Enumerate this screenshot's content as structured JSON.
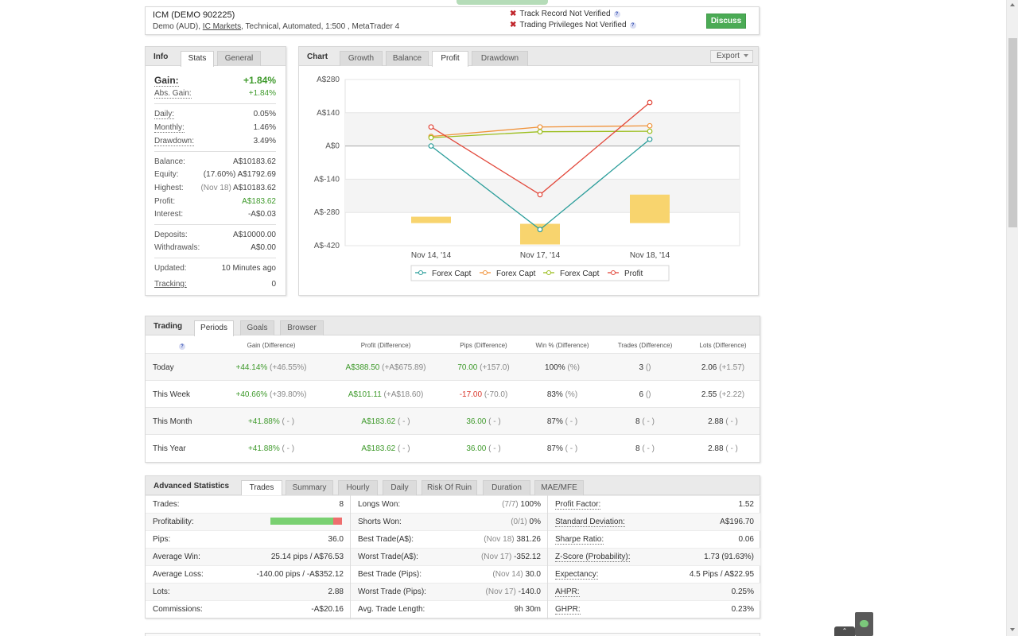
{
  "header": {
    "account_title": "ICM (DEMO 902225)",
    "subtitle_prefix": "Demo (AUD), ",
    "broker_link": "IC Markets",
    "subtitle_suffix": ", Technical, Automated, 1:500 , MetaTrader 4",
    "warning_1": "Track Record Not Verified",
    "warning_2": "Trading Privileges Not Verified",
    "discuss_label": "Discuss",
    "help_glyph": "?",
    "cross_glyph": "✖"
  },
  "info": {
    "title": "Info",
    "tabs": [
      "Stats",
      "General"
    ],
    "gain_label": "Gain:",
    "gain_value": "+1.84%",
    "abs_gain_label": "Abs. Gain:",
    "abs_gain_value": "+1.84%",
    "daily_label": "Daily:",
    "daily_value": "0.05%",
    "monthly_label": "Monthly:",
    "monthly_value": "1.46%",
    "drawdown_label": "Drawdown:",
    "drawdown_value": "3.49%",
    "balance_label": "Balance:",
    "balance_value": "A$10183.62",
    "equity_label": "Equity:",
    "equity_note": "(17.60%)",
    "equity_value": "A$1792.69",
    "highest_label": "Highest:",
    "highest_note": "(Nov 18)",
    "highest_value": "A$10183.62",
    "profit_label": "Profit:",
    "profit_value": "A$183.62",
    "interest_label": "Interest:",
    "interest_value": "-A$0.03",
    "deposits_label": "Deposits:",
    "deposits_value": "A$10000.00",
    "withdrawals_label": "Withdrawals:",
    "withdrawals_value": "A$0.00",
    "updated_label": "Updated:",
    "updated_value": "10 Minutes ago",
    "tracking_label": "Tracking:",
    "tracking_value": "0"
  },
  "chart_panel": {
    "title": "Chart",
    "tabs": [
      "Growth",
      "Balance",
      "Profit",
      "Drawdown"
    ],
    "active_tab": "Profit",
    "export_label": "Export"
  },
  "chart_data": {
    "type": "line",
    "categories": [
      "Nov 14, '14",
      "Nov 17, '14",
      "Nov 18, '14"
    ],
    "y_ticks": [
      "A$280",
      "A$140",
      "A$0",
      "A$-140",
      "A$-280",
      "A$-420"
    ],
    "ylim": [
      -420,
      280
    ],
    "grid": true,
    "legend_position": "bottom",
    "series": [
      {
        "name": "Forex Capt",
        "color": "#2a9d9a",
        "values": [
          0,
          -352,
          28
        ]
      },
      {
        "name": "Forex Capt",
        "color": "#f0933b",
        "values": [
          40,
          80,
          85
        ]
      },
      {
        "name": "Forex Capt",
        "color": "#9cbe1e",
        "values": [
          35,
          60,
          62
        ]
      },
      {
        "name": "Profit",
        "color": "#e2483b",
        "values": [
          80,
          -205,
          183
        ]
      }
    ],
    "bars": {
      "color": "#f8d46e",
      "values": [
        {
          "x": 0,
          "low": -325,
          "high": -298
        },
        {
          "x": 1,
          "low": -415,
          "high": -328
        },
        {
          "x": 2,
          "low": -325,
          "high": -205
        }
      ]
    }
  },
  "trading": {
    "title": "Trading",
    "tabs": [
      "Periods",
      "Goals",
      "Browser"
    ],
    "columns": [
      "Gain (Difference)",
      "Profit (Difference)",
      "Pips (Difference)",
      "Win % (Difference)",
      "Trades (Difference)",
      "Lots (Difference)"
    ],
    "rows": [
      {
        "label": "Today",
        "gain": "+44.14%",
        "gain_d": "(+46.55%)",
        "profit": "A$388.50",
        "profit_d": "(+A$675.89)",
        "pips": "70.00",
        "pips_d": "(+157.0)",
        "win": "100%",
        "win_d": "(%)",
        "trades": "3",
        "trades_d": "()",
        "lots": "2.06",
        "lots_d": "(+1.57)"
      },
      {
        "label": "This Week",
        "gain": "+40.66%",
        "gain_d": "(+39.80%)",
        "profit": "A$101.11",
        "profit_d": "(+A$18.60)",
        "pips": "-17.00",
        "pips_d": "(-70.0)",
        "win": "83%",
        "win_d": "(%)",
        "trades": "6",
        "trades_d": "()",
        "lots": "2.55",
        "lots_d": "(+2.22)"
      },
      {
        "label": "This Month",
        "gain": "+41.88%",
        "gain_d": "( - )",
        "profit": "A$183.62",
        "profit_d": "( - )",
        "pips": "36.00",
        "pips_d": "( - )",
        "win": "87%",
        "win_d": "( - )",
        "trades": "8",
        "trades_d": "( - )",
        "lots": "2.88",
        "lots_d": "( - )"
      },
      {
        "label": "This Year",
        "gain": "+41.88%",
        "gain_d": "( - )",
        "profit": "A$183.62",
        "profit_d": "( - )",
        "pips": "36.00",
        "pips_d": "( - )",
        "win": "87%",
        "win_d": "( - )",
        "trades": "8",
        "trades_d": "( - )",
        "lots": "2.88",
        "lots_d": "( - )"
      }
    ]
  },
  "advanced": {
    "title": "Advanced Statistics",
    "tabs": [
      "Trades",
      "Summary",
      "Hourly",
      "Daily",
      "Risk Of Ruin",
      "Duration",
      "MAE/MFE"
    ],
    "col1": [
      {
        "k": "Trades:",
        "v": "8"
      },
      {
        "k": "Profitability:",
        "v": ""
      },
      {
        "k": "Pips:",
        "v": "36.0"
      },
      {
        "k": "Average Win:",
        "v": "25.14 pips / A$76.53"
      },
      {
        "k": "Average Loss:",
        "v": "-140.00 pips / -A$352.12"
      },
      {
        "k": "Lots:",
        "v": "2.88"
      },
      {
        "k": "Commissions:",
        "v": "-A$20.16"
      }
    ],
    "profitability_win_fraction": 0.875,
    "col2": [
      {
        "k": "Longs Won:",
        "n": "(7/7)",
        "v": "100%"
      },
      {
        "k": "Shorts Won:",
        "n": "(0/1)",
        "v": "0%"
      },
      {
        "k": "Best Trade(A$):",
        "n": "(Nov 18)",
        "v": "381.26"
      },
      {
        "k": "Worst Trade(A$):",
        "n": "(Nov 17)",
        "v": "-352.12"
      },
      {
        "k": "Best Trade (Pips):",
        "n": "(Nov 14)",
        "v": "30.0"
      },
      {
        "k": "Worst Trade (Pips):",
        "n": "(Nov 17)",
        "v": "-140.0"
      },
      {
        "k": "Avg. Trade Length:",
        "n": "",
        "v": "9h 30m"
      }
    ],
    "col3": [
      {
        "k": "Profit Factor:",
        "v": "1.52"
      },
      {
        "k": "Standard Deviation:",
        "v": "A$196.70"
      },
      {
        "k": "Sharpe Ratio:",
        "v": "0.06"
      },
      {
        "k": "Z-Score (Probability):",
        "v": "1.73 (91.63%)"
      },
      {
        "k": "Expectancy:",
        "v": "4.5 Pips / A$22.95"
      },
      {
        "k": "AHPR:",
        "v": "0.25%"
      },
      {
        "k": "GHPR:",
        "v": "0.23%"
      }
    ]
  }
}
